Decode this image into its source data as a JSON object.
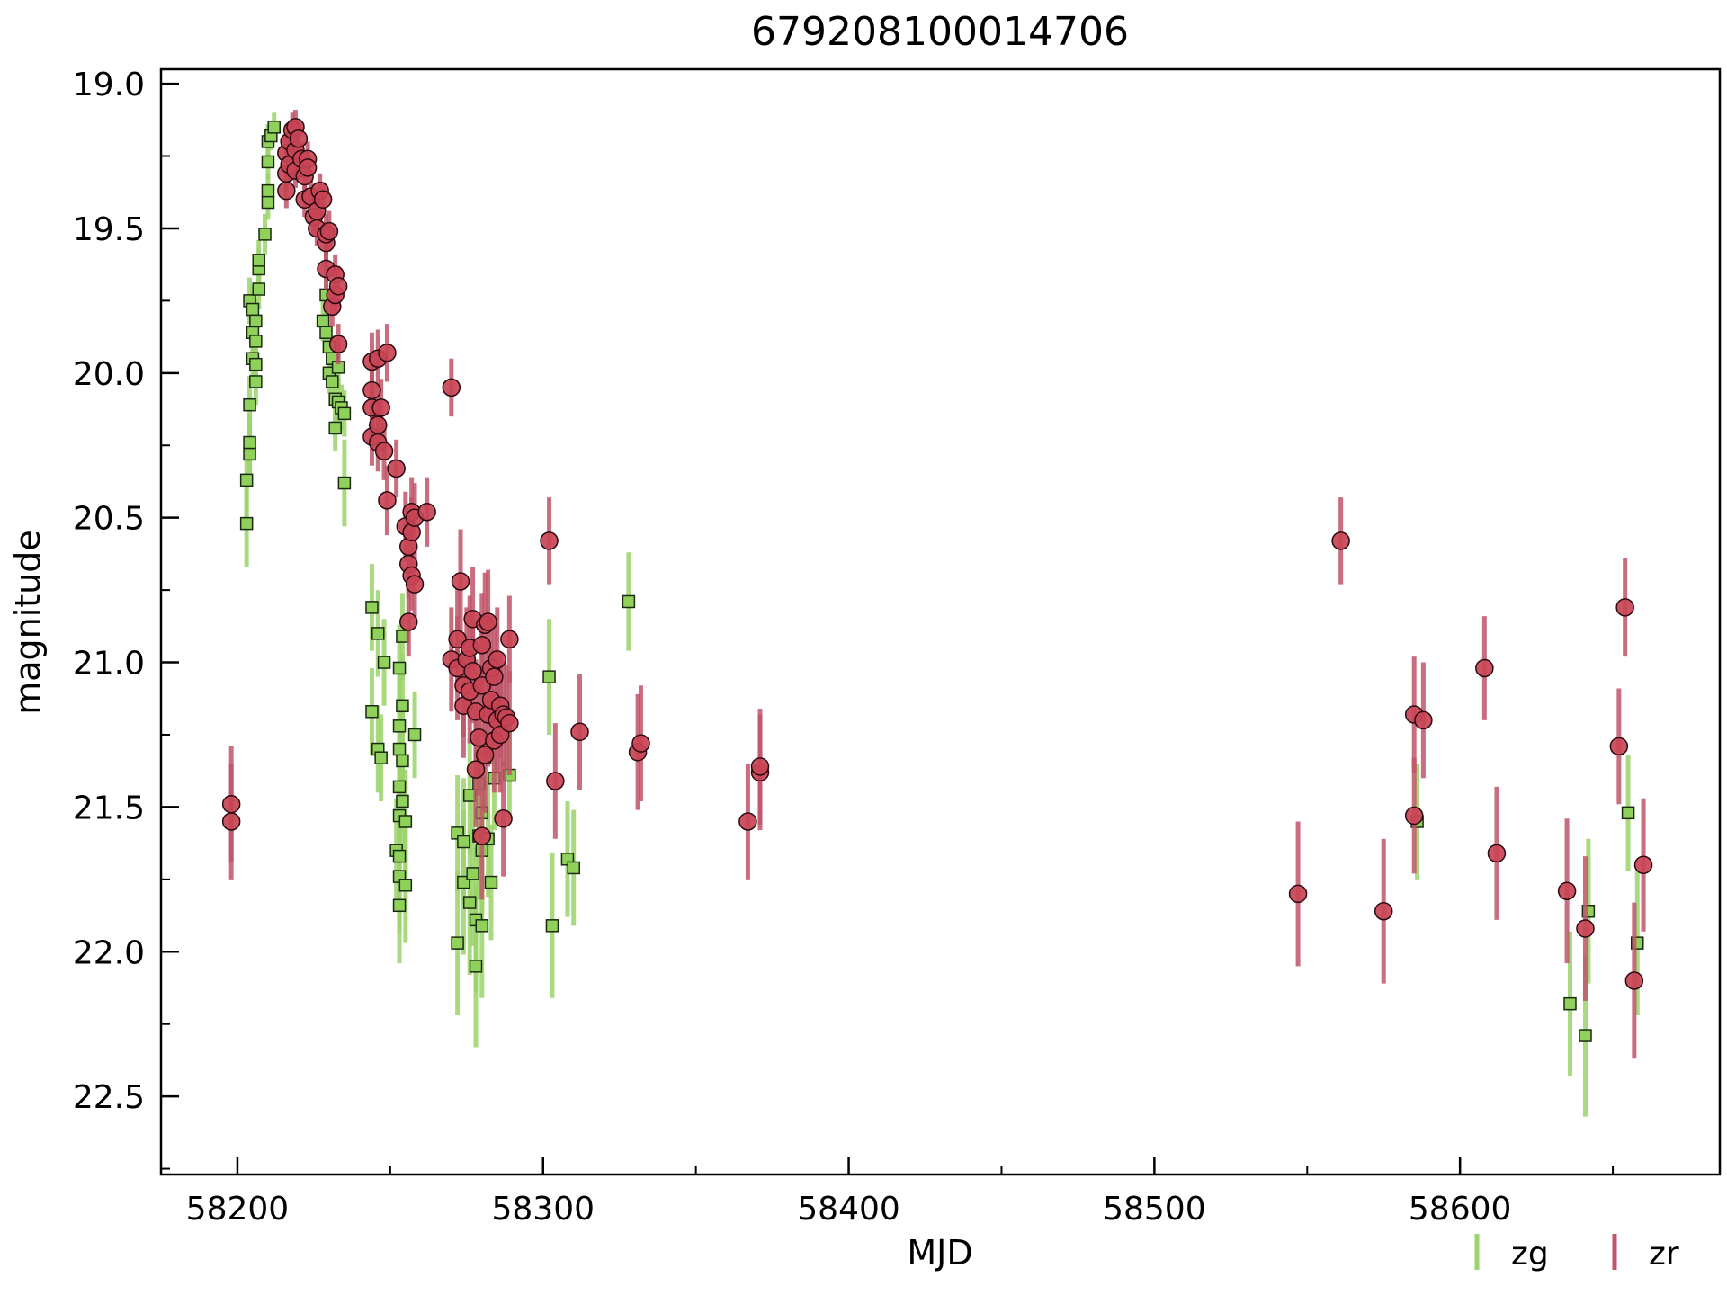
{
  "chart_data": {
    "type": "scatter",
    "title": "679208100014706",
    "xlabel": "MJD",
    "ylabel": "magnitude",
    "xlim": [
      58175,
      58685
    ],
    "ylim": [
      22.77,
      18.95
    ],
    "y_inverted": true,
    "grid": false,
    "legend_position": "bottom-right, below axes",
    "x_ticks": [
      58200,
      58300,
      58400,
      58500,
      58600
    ],
    "x_tick_labels": [
      "58200",
      "58300",
      "58400",
      "58500",
      "58600"
    ],
    "y_ticks": [
      19.0,
      19.5,
      20.0,
      20.5,
      21.0,
      21.5,
      22.0,
      22.5
    ],
    "y_tick_labels": [
      "19.0",
      "19.5",
      "20.0",
      "20.5",
      "21.0",
      "21.5",
      "22.0",
      "22.5"
    ],
    "series": [
      {
        "name": "zg",
        "marker": "square",
        "color": "#9bd46a",
        "marker_fill": "#8fd15a",
        "points": [
          [
            58203,
            20.52,
            0.15
          ],
          [
            58203,
            20.37,
            0.13
          ],
          [
            58204,
            20.28,
            0.1
          ],
          [
            58204,
            20.24,
            0.1
          ],
          [
            58204,
            20.11,
            0.1
          ],
          [
            58204,
            19.75,
            0.08
          ],
          [
            58205,
            19.95,
            0.08
          ],
          [
            58205,
            19.86,
            0.08
          ],
          [
            58205,
            19.78,
            0.08
          ],
          [
            58206,
            19.97,
            0.08
          ],
          [
            58206,
            19.89,
            0.08
          ],
          [
            58206,
            19.82,
            0.08
          ],
          [
            58206,
            20.03,
            0.08
          ],
          [
            58207,
            19.71,
            0.07
          ],
          [
            58207,
            19.64,
            0.07
          ],
          [
            58207,
            19.61,
            0.07
          ],
          [
            58209,
            19.52,
            0.07
          ],
          [
            58210,
            19.41,
            0.06
          ],
          [
            58210,
            19.37,
            0.06
          ],
          [
            58210,
            19.27,
            0.06
          ],
          [
            58210,
            19.2,
            0.06
          ],
          [
            58211,
            19.18,
            0.05
          ],
          [
            58212,
            19.15,
            0.05
          ],
          [
            58228,
            19.82,
            0.07
          ],
          [
            58229,
            19.86,
            0.07
          ],
          [
            58229,
            19.73,
            0.07
          ],
          [
            58230,
            19.91,
            0.07
          ],
          [
            58230,
            20.0,
            0.07
          ],
          [
            58231,
            20.03,
            0.08
          ],
          [
            58231,
            19.95,
            0.08
          ],
          [
            58232,
            20.09,
            0.08
          ],
          [
            58232,
            20.19,
            0.08
          ],
          [
            58233,
            20.1,
            0.08
          ],
          [
            58233,
            19.98,
            0.08
          ],
          [
            58234,
            20.12,
            0.08
          ],
          [
            58235,
            20.38,
            0.15
          ],
          [
            58235,
            20.14,
            0.08
          ],
          [
            58244,
            20.81,
            0.15
          ],
          [
            58244,
            21.17,
            0.15
          ],
          [
            58246,
            20.9,
            0.15
          ],
          [
            58246,
            21.3,
            0.15
          ],
          [
            58247,
            21.33,
            0.15
          ],
          [
            58248,
            21.0,
            0.15
          ],
          [
            58252,
            21.65,
            0.18
          ],
          [
            58253,
            21.84,
            0.2
          ],
          [
            58253,
            21.74,
            0.2
          ],
          [
            58253,
            21.67,
            0.2
          ],
          [
            58253,
            21.53,
            0.18
          ],
          [
            58253,
            21.43,
            0.18
          ],
          [
            58253,
            21.3,
            0.18
          ],
          [
            58253,
            21.22,
            0.18
          ],
          [
            58253,
            21.02,
            0.15
          ],
          [
            58254,
            20.91,
            0.15
          ],
          [
            58254,
            21.15,
            0.18
          ],
          [
            58254,
            21.34,
            0.18
          ],
          [
            58254,
            21.48,
            0.18
          ],
          [
            58255,
            21.55,
            0.18
          ],
          [
            58255,
            21.77,
            0.2
          ],
          [
            58258,
            21.25,
            0.15
          ],
          [
            58272,
            21.59,
            0.2
          ],
          [
            58272,
            21.97,
            0.25
          ],
          [
            58274,
            21.76,
            0.25
          ],
          [
            58274,
            21.62,
            0.22
          ],
          [
            58276,
            21.83,
            0.25
          ],
          [
            58276,
            21.46,
            0.2
          ],
          [
            58277,
            21.73,
            0.25
          ],
          [
            58278,
            22.05,
            0.28
          ],
          [
            58278,
            21.89,
            0.25
          ],
          [
            58279,
            21.6,
            0.22
          ],
          [
            58279,
            21.42,
            0.2
          ],
          [
            58280,
            21.91,
            0.25
          ],
          [
            58280,
            21.65,
            0.22
          ],
          [
            58280,
            21.52,
            0.2
          ],
          [
            58281,
            21.33,
            0.2
          ],
          [
            58282,
            21.61,
            0.2
          ],
          [
            58283,
            21.76,
            0.2
          ],
          [
            58284,
            21.4,
            0.18
          ],
          [
            58289,
            21.39,
            0.15
          ],
          [
            58302,
            21.05,
            0.2
          ],
          [
            58303,
            21.91,
            0.25
          ],
          [
            58308,
            21.68,
            0.2
          ],
          [
            58310,
            21.71,
            0.2
          ],
          [
            58328,
            20.79,
            0.17
          ],
          [
            58586,
            21.55,
            0.2
          ],
          [
            58636,
            22.18,
            0.25
          ],
          [
            58641,
            22.29,
            0.28
          ],
          [
            58642,
            21.86,
            0.25
          ],
          [
            58655,
            21.52,
            0.2
          ],
          [
            58658,
            21.97,
            0.25
          ]
        ]
      },
      {
        "name": "zr",
        "marker": "circle",
        "color": "#c05568",
        "marker_fill": "#c84455",
        "points": [
          [
            58198,
            21.49,
            0.2
          ],
          [
            58198,
            21.55,
            0.2
          ],
          [
            58216,
            19.24,
            0.06
          ],
          [
            58216,
            19.31,
            0.06
          ],
          [
            58216,
            19.37,
            0.06
          ],
          [
            58217,
            19.2,
            0.06
          ],
          [
            58217,
            19.28,
            0.06
          ],
          [
            58218,
            19.16,
            0.06
          ],
          [
            58219,
            19.23,
            0.06
          ],
          [
            58219,
            19.3,
            0.06
          ],
          [
            58219,
            19.15,
            0.06
          ],
          [
            58220,
            19.19,
            0.06
          ],
          [
            58221,
            19.26,
            0.06
          ],
          [
            58222,
            19.32,
            0.06
          ],
          [
            58222,
            19.4,
            0.06
          ],
          [
            58223,
            19.26,
            0.06
          ],
          [
            58223,
            19.29,
            0.06
          ],
          [
            58224,
            19.39,
            0.06
          ],
          [
            58225,
            19.46,
            0.06
          ],
          [
            58226,
            19.44,
            0.06
          ],
          [
            58226,
            19.5,
            0.06
          ],
          [
            58227,
            19.37,
            0.06
          ],
          [
            58228,
            19.4,
            0.06
          ],
          [
            58229,
            19.64,
            0.07
          ],
          [
            58229,
            19.55,
            0.07
          ],
          [
            58229,
            19.52,
            0.07
          ],
          [
            58230,
            19.51,
            0.07
          ],
          [
            58231,
            19.77,
            0.07
          ],
          [
            58232,
            19.66,
            0.07
          ],
          [
            58232,
            19.73,
            0.07
          ],
          [
            58233,
            19.7,
            0.07
          ],
          [
            58233,
            19.9,
            0.07
          ],
          [
            58244,
            19.96,
            0.1
          ],
          [
            58244,
            20.06,
            0.1
          ],
          [
            58244,
            20.12,
            0.1
          ],
          [
            58244,
            20.22,
            0.1
          ],
          [
            58246,
            19.95,
            0.1
          ],
          [
            58246,
            20.18,
            0.1
          ],
          [
            58246,
            20.24,
            0.1
          ],
          [
            58247,
            20.12,
            0.1
          ],
          [
            58248,
            20.27,
            0.1
          ],
          [
            58249,
            19.93,
            0.1
          ],
          [
            58249,
            20.44,
            0.12
          ],
          [
            58252,
            20.33,
            0.1
          ],
          [
            58255,
            20.53,
            0.12
          ],
          [
            58256,
            20.6,
            0.12
          ],
          [
            58256,
            20.66,
            0.12
          ],
          [
            58256,
            20.86,
            0.12
          ],
          [
            58257,
            20.48,
            0.12
          ],
          [
            58257,
            20.55,
            0.12
          ],
          [
            58257,
            20.7,
            0.12
          ],
          [
            58258,
            20.73,
            0.12
          ],
          [
            58258,
            20.5,
            0.12
          ],
          [
            58262,
            20.48,
            0.12
          ],
          [
            58270,
            20.05,
            0.1
          ],
          [
            58270,
            20.99,
            0.18
          ],
          [
            58272,
            20.92,
            0.18
          ],
          [
            58272,
            21.02,
            0.18
          ],
          [
            58273,
            20.72,
            0.18
          ],
          [
            58274,
            21.08,
            0.18
          ],
          [
            58274,
            21.15,
            0.18
          ],
          [
            58275,
            20.99,
            0.18
          ],
          [
            58276,
            21.1,
            0.18
          ],
          [
            58276,
            20.95,
            0.18
          ],
          [
            58277,
            20.85,
            0.18
          ],
          [
            58277,
            21.03,
            0.18
          ],
          [
            58278,
            21.17,
            0.18
          ],
          [
            58278,
            21.37,
            0.2
          ],
          [
            58279,
            21.26,
            0.2
          ],
          [
            58280,
            21.6,
            0.22
          ],
          [
            58280,
            21.08,
            0.18
          ],
          [
            58280,
            20.94,
            0.18
          ],
          [
            58281,
            20.87,
            0.18
          ],
          [
            58281,
            21.32,
            0.2
          ],
          [
            58282,
            21.18,
            0.18
          ],
          [
            58282,
            20.86,
            0.18
          ],
          [
            58283,
            21.02,
            0.18
          ],
          [
            58283,
            21.13,
            0.18
          ],
          [
            58284,
            21.27,
            0.18
          ],
          [
            58284,
            21.05,
            0.18
          ],
          [
            58285,
            20.99,
            0.18
          ],
          [
            58285,
            21.2,
            0.18
          ],
          [
            58286,
            21.15,
            0.18
          ],
          [
            58286,
            21.25,
            0.2
          ],
          [
            58287,
            21.54,
            0.2
          ],
          [
            58287,
            21.18,
            0.18
          ],
          [
            58288,
            21.19,
            0.18
          ],
          [
            58289,
            21.21,
            0.18
          ],
          [
            58289,
            20.92,
            0.15
          ],
          [
            58302,
            20.58,
            0.15
          ],
          [
            58304,
            21.41,
            0.2
          ],
          [
            58312,
            21.24,
            0.2
          ],
          [
            58331,
            21.31,
            0.2
          ],
          [
            58332,
            21.28,
            0.2
          ],
          [
            58367,
            21.55,
            0.2
          ],
          [
            58371,
            21.38,
            0.2
          ],
          [
            58371,
            21.36,
            0.2
          ],
          [
            58547,
            21.8,
            0.25
          ],
          [
            58561,
            20.58,
            0.15
          ],
          [
            58575,
            21.86,
            0.25
          ],
          [
            58585,
            21.53,
            0.2
          ],
          [
            58585,
            21.18,
            0.2
          ],
          [
            58588,
            21.2,
            0.2
          ],
          [
            58608,
            21.02,
            0.18
          ],
          [
            58612,
            21.66,
            0.23
          ],
          [
            58635,
            21.79,
            0.25
          ],
          [
            58641,
            21.92,
            0.25
          ],
          [
            58652,
            21.29,
            0.2
          ],
          [
            58654,
            20.81,
            0.17
          ],
          [
            58657,
            22.1,
            0.27
          ],
          [
            58660,
            21.7,
            0.23
          ]
        ]
      }
    ]
  }
}
